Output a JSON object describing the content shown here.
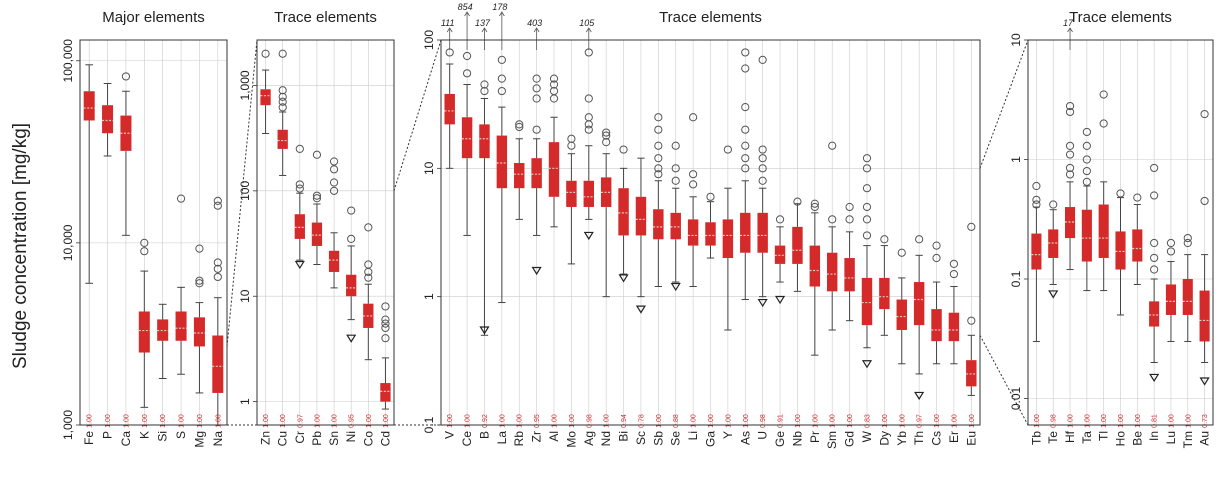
{
  "ylabel": "Sludge concentration [mg/kg]",
  "colors": {
    "box": "#d42a2a",
    "median": "#e6c5c5",
    "whisker": "#444444",
    "outlier": "#555555",
    "grid": "#cccccc",
    "fraction": "#d42a2a"
  },
  "chart_data": [
    {
      "type": "box",
      "title": "Major elements",
      "yscale": "log",
      "ylim": [
        1000,
        130000
      ],
      "yticks": [
        {
          "v": 1000,
          "label": "1,000"
        },
        {
          "v": 10000,
          "label": "10,000"
        },
        {
          "v": 100000,
          "label": "100,000"
        }
      ],
      "elements": [
        {
          "name": "Fe",
          "frac": "1.00",
          "wlo": 6000,
          "q1": 47000,
          "med": 55000,
          "q3": 68000,
          "whi": 95000,
          "out": [],
          "tri": []
        },
        {
          "name": "P",
          "frac": "1.00",
          "wlo": 30000,
          "q1": 40000,
          "med": 47000,
          "q3": 57000,
          "whi": 75000,
          "out": [],
          "tri": []
        },
        {
          "name": "Ca",
          "frac": "1.00",
          "wlo": 11000,
          "q1": 32000,
          "med": 40000,
          "q3": 50000,
          "whi": 68000,
          "out": [
            82000
          ],
          "tri": []
        },
        {
          "name": "K",
          "frac": "1.00",
          "wlo": 1250,
          "q1": 2500,
          "med": 3300,
          "q3": 4200,
          "whi": 7000,
          "out": [
            9000,
            10000
          ],
          "tri": []
        },
        {
          "name": "Si",
          "frac": "1.00",
          "wlo": 1800,
          "q1": 2900,
          "med": 3300,
          "q3": 3800,
          "whi": 4600,
          "out": [],
          "tri": []
        },
        {
          "name": "S",
          "frac": "1.00",
          "wlo": 1900,
          "q1": 2900,
          "med": 3400,
          "q3": 4200,
          "whi": 5700,
          "out": [
            17500
          ],
          "tri": []
        },
        {
          "name": "Mg",
          "frac": "1.00",
          "wlo": 1500,
          "q1": 2700,
          "med": 3200,
          "q3": 3900,
          "whi": 4700,
          "out": [
            6000,
            6200,
            9300
          ],
          "tri": []
        },
        {
          "name": "Na",
          "frac": "1.00",
          "wlo": 1000,
          "q1": 1500,
          "med": 2100,
          "q3": 3100,
          "whi": 5000,
          "out": [
            6500,
            7200,
            7800,
            16000,
            17000
          ],
          "tri": []
        }
      ]
    },
    {
      "type": "box",
      "title": "Trace elements",
      "yscale": "log",
      "ylim": [
        0.6,
        2700
      ],
      "yticks": [
        {
          "v": 1,
          "label": "1"
        },
        {
          "v": 10,
          "label": "10"
        },
        {
          "v": 100,
          "label": "100"
        },
        {
          "v": 1000,
          "label": "1,000"
        }
      ],
      "elements": [
        {
          "name": "Zn",
          "frac": "1.00",
          "wlo": 350,
          "q1": 650,
          "med": 800,
          "q3": 920,
          "whi": 1400,
          "out": [
            2000
          ],
          "tri": []
        },
        {
          "name": "Cu",
          "frac": "1.00",
          "wlo": 140,
          "q1": 250,
          "med": 300,
          "q3": 380,
          "whi": 560,
          "out": [
            620,
            700,
            780,
            900,
            2000
          ],
          "tri": []
        },
        {
          "name": "Cr",
          "frac": "0.97",
          "wlo": 22,
          "q1": 35,
          "med": 45,
          "q3": 60,
          "whi": 95,
          "out": [
            105,
            115,
            250
          ],
          "tri": [
            20
          ]
        },
        {
          "name": "Pb",
          "frac": "1.00",
          "wlo": 20,
          "q1": 30,
          "med": 38,
          "q3": 50,
          "whi": 75,
          "out": [
            85,
            90,
            220
          ],
          "tri": []
        },
        {
          "name": "Sn",
          "frac": "1.00",
          "wlo": 12,
          "q1": 17,
          "med": 22,
          "q3": 27,
          "whi": 40,
          "out": [
            100,
            120,
            160,
            190
          ],
          "tri": []
        },
        {
          "name": "Ni",
          "frac": "0.95",
          "wlo": 6,
          "q1": 10,
          "med": 12,
          "q3": 16,
          "whi": 30,
          "out": [
            35,
            65
          ],
          "tri": [
            4
          ]
        },
        {
          "name": "Co",
          "frac": "1.00",
          "wlo": 2.5,
          "q1": 5,
          "med": 6.5,
          "q3": 8.5,
          "whi": 13,
          "out": [
            15,
            17,
            20,
            45
          ],
          "tri": []
        },
        {
          "name": "Cd",
          "frac": "1.00",
          "wlo": 0.85,
          "q1": 1,
          "med": 1.25,
          "q3": 1.5,
          "whi": 2.6,
          "out": [
            4,
            5,
            5.5,
            6,
            8
          ],
          "tri": []
        }
      ]
    },
    {
      "type": "box",
      "title": "Trace elements",
      "yscale": "log",
      "ylim": [
        0.1,
        100
      ],
      "yticks": [
        {
          "v": 0.1,
          "label": "0.1"
        },
        {
          "v": 1,
          "label": "1"
        },
        {
          "v": 10,
          "label": "10"
        },
        {
          "v": 100,
          "label": "100"
        }
      ],
      "offscale": [
        {
          "element": "V",
          "label": "111"
        },
        {
          "element": "Ce",
          "label": "854"
        },
        {
          "element": "B",
          "label": "137"
        },
        {
          "element": "La",
          "label": "178"
        },
        {
          "element": "Zr",
          "label": "403"
        },
        {
          "element": "Ag",
          "label": "105"
        }
      ],
      "elements": [
        {
          "name": "V",
          "frac": "1.00",
          "wlo": 10,
          "q1": 22,
          "med": 28,
          "q3": 38,
          "whi": 65,
          "out": [
            80
          ],
          "tri": []
        },
        {
          "name": "Ce",
          "frac": "1.00",
          "wlo": 3,
          "q1": 12,
          "med": 17,
          "q3": 25,
          "whi": 45,
          "out": [
            55,
            75
          ],
          "tri": []
        },
        {
          "name": "B",
          "frac": "0.92",
          "wlo": 0.5,
          "q1": 12,
          "med": 17,
          "q3": 22,
          "whi": 35,
          "out": [
            40,
            45
          ],
          "tri": [
            0.55
          ]
        },
        {
          "name": "La",
          "frac": "1.00",
          "wlo": 0.9,
          "q1": 7,
          "med": 11,
          "q3": 18,
          "whi": 30,
          "out": [
            40,
            50,
            70
          ],
          "tri": []
        },
        {
          "name": "Rb",
          "frac": "1.00",
          "wlo": 4,
          "q1": 7,
          "med": 9,
          "q3": 11,
          "whi": 17,
          "out": [
            21,
            22
          ],
          "tri": []
        },
        {
          "name": "Zr",
          "frac": "0.95",
          "wlo": 3,
          "q1": 7,
          "med": 9,
          "q3": 12,
          "whi": 17,
          "out": [
            20,
            35,
            42,
            50
          ],
          "tri": [
            1.6
          ]
        },
        {
          "name": "Al",
          "frac": "1.00",
          "wlo": 3.5,
          "q1": 6,
          "med": 10,
          "q3": 16,
          "whi": 25,
          "out": [
            35,
            40,
            45,
            50
          ],
          "tri": []
        },
        {
          "name": "Mo",
          "frac": "1.00",
          "wlo": 1.8,
          "q1": 5,
          "med": 6.5,
          "q3": 8,
          "whi": 13,
          "out": [
            15,
            17
          ],
          "tri": []
        },
        {
          "name": "Ag",
          "frac": "0.98",
          "wlo": 4,
          "q1": 5,
          "med": 6,
          "q3": 8,
          "whi": 15,
          "out": [
            20,
            22,
            25,
            35,
            80
          ],
          "tri": [
            3
          ]
        },
        {
          "name": "Nd",
          "frac": "1.00",
          "wlo": 1,
          "q1": 5,
          "med": 6.5,
          "q3": 8.5,
          "whi": 13,
          "out": [
            16,
            18,
            19
          ],
          "tri": []
        },
        {
          "name": "Bi",
          "frac": "0.94",
          "wlo": 1.5,
          "q1": 3,
          "med": 4.5,
          "q3": 7,
          "whi": 10,
          "out": [
            14
          ],
          "tri": [
            1.4
          ]
        },
        {
          "name": "Sc",
          "frac": "0.78",
          "wlo": 1,
          "q1": 3,
          "med": 4,
          "q3": 6,
          "whi": 12,
          "out": [],
          "tri": [
            0.8
          ]
        },
        {
          "name": "Sb",
          "frac": "1.00",
          "wlo": 1.2,
          "q1": 2.8,
          "med": 3.5,
          "q3": 4.8,
          "whi": 8,
          "out": [
            9,
            10,
            12,
            15,
            20,
            25
          ],
          "tri": []
        },
        {
          "name": "Se",
          "frac": "0.88",
          "wlo": 1.3,
          "q1": 2.8,
          "med": 3.5,
          "q3": 4.5,
          "whi": 7,
          "out": [
            8,
            10,
            15
          ],
          "tri": [
            1.2
          ]
        },
        {
          "name": "Li",
          "frac": "1.00",
          "wlo": 1.2,
          "q1": 2.5,
          "med": 3,
          "q3": 4,
          "whi": 6,
          "out": [
            7.5,
            9,
            25
          ],
          "tri": []
        },
        {
          "name": "Ga",
          "frac": "1.00",
          "wlo": 2,
          "q1": 2.5,
          "med": 3,
          "q3": 3.8,
          "whi": 5.5,
          "out": [
            6
          ],
          "tri": []
        },
        {
          "name": "Y",
          "frac": "1.00",
          "wlo": 0.55,
          "q1": 2,
          "med": 3,
          "q3": 4,
          "whi": 7,
          "out": [
            14
          ],
          "tri": []
        },
        {
          "name": "As",
          "frac": "1.00",
          "wlo": 0.95,
          "q1": 2.2,
          "med": 3,
          "q3": 4.5,
          "whi": 8,
          "out": [
            10,
            12,
            15,
            20,
            30,
            60,
            80
          ],
          "tri": []
        },
        {
          "name": "U",
          "frac": "0.98",
          "wlo": 1,
          "q1": 2.2,
          "med": 3,
          "q3": 4.5,
          "whi": 7,
          "out": [
            8,
            10,
            12,
            14,
            70
          ],
          "tri": [
            0.9
          ]
        },
        {
          "name": "Ge",
          "frac": "0.91",
          "wlo": 1.3,
          "q1": 1.8,
          "med": 2.1,
          "q3": 2.5,
          "whi": 3.5,
          "out": [
            4
          ],
          "tri": [
            0.95
          ]
        },
        {
          "name": "Nb",
          "frac": "1.00",
          "wlo": 1.1,
          "q1": 1.8,
          "med": 2.3,
          "q3": 3.5,
          "whi": 5.3,
          "out": [
            5.5
          ],
          "tri": []
        },
        {
          "name": "Pr",
          "frac": "1.00",
          "wlo": 0.35,
          "q1": 1.2,
          "med": 1.6,
          "q3": 2.5,
          "whi": 4.5,
          "out": [
            5,
            5.3
          ],
          "tri": []
        },
        {
          "name": "Sm",
          "frac": "1.00",
          "wlo": 0.55,
          "q1": 1.1,
          "med": 1.5,
          "q3": 2.2,
          "whi": 3.5,
          "out": [
            4,
            15
          ],
          "tri": []
        },
        {
          "name": "Gd",
          "frac": "1.00",
          "wlo": 0.65,
          "q1": 1.1,
          "med": 1.4,
          "q3": 2,
          "whi": 3.2,
          "out": [
            4,
            5
          ],
          "tri": []
        },
        {
          "name": "W",
          "frac": "0.83",
          "wlo": 0.4,
          "q1": 0.6,
          "med": 0.9,
          "q3": 1.4,
          "whi": 2.5,
          "out": [
            3,
            4,
            5,
            7,
            10,
            12
          ],
          "tri": [
            0.3
          ]
        },
        {
          "name": "Dy",
          "frac": "1.00",
          "wlo": 0.5,
          "q1": 0.8,
          "med": 1,
          "q3": 1.4,
          "whi": 2.5,
          "out": [
            2.8
          ],
          "tri": []
        },
        {
          "name": "Yb",
          "frac": "1.00",
          "wlo": 0.3,
          "q1": 0.55,
          "med": 0.7,
          "q3": 0.95,
          "whi": 1.4,
          "out": [
            2.2
          ],
          "tri": []
        },
        {
          "name": "Th",
          "frac": "0.97",
          "wlo": 0.25,
          "q1": 0.6,
          "med": 0.95,
          "q3": 1.3,
          "whi": 2.1,
          "out": [
            2.8
          ],
          "tri": [
            0.17
          ]
        },
        {
          "name": "Cs",
          "frac": "1.00",
          "wlo": 0.3,
          "q1": 0.45,
          "med": 0.55,
          "q3": 0.8,
          "whi": 1.3,
          "out": [
            2,
            2.5
          ],
          "tri": []
        },
        {
          "name": "Er",
          "frac": "1.00",
          "wlo": 0.3,
          "q1": 0.45,
          "med": 0.55,
          "q3": 0.75,
          "whi": 1.2,
          "out": [
            1.5,
            1.8
          ],
          "tri": []
        },
        {
          "name": "Eu",
          "frac": "1.00",
          "wlo": 0.17,
          "q1": 0.2,
          "med": 0.25,
          "q3": 0.32,
          "whi": 0.5,
          "out": [
            0.65,
            3.5
          ],
          "tri": []
        }
      ]
    },
    {
      "type": "box",
      "title": "Trace elements",
      "yscale": "log",
      "ylim": [
        0.006,
        10
      ],
      "yticks": [
        {
          "v": 0.01,
          "label": "0.01"
        },
        {
          "v": 0.1,
          "label": "0.1"
        },
        {
          "v": 1,
          "label": "1"
        },
        {
          "v": 10,
          "label": "10"
        }
      ],
      "offscale": [
        {
          "element": "Hf",
          "label": "17"
        }
      ],
      "elements": [
        {
          "name": "Tb",
          "frac": "1.00",
          "wlo": 0.03,
          "q1": 0.12,
          "med": 0.16,
          "q3": 0.24,
          "whi": 0.4,
          "out": [
            0.42,
            0.46,
            0.6
          ],
          "tri": []
        },
        {
          "name": "Te",
          "frac": "0.98",
          "wlo": 0.09,
          "q1": 0.15,
          "med": 0.2,
          "q3": 0.26,
          "whi": 0.38,
          "out": [
            0.42
          ],
          "tri": [
            0.075
          ]
        },
        {
          "name": "Hf",
          "frac": "1.00",
          "wlo": 0.12,
          "q1": 0.22,
          "med": 0.3,
          "q3": 0.4,
          "whi": 0.65,
          "out": [
            0.75,
            0.85,
            1.1,
            1.3,
            2.5,
            2.8
          ],
          "tri": []
        },
        {
          "name": "Ta",
          "frac": "1.00",
          "wlo": 0.08,
          "q1": 0.14,
          "med": 0.22,
          "q3": 0.38,
          "whi": 0.6,
          "out": [
            0.65,
            0.8,
            1,
            1.3,
            1.7
          ],
          "tri": []
        },
        {
          "name": "Tl",
          "frac": "1.00",
          "wlo": 0.08,
          "q1": 0.15,
          "med": 0.22,
          "q3": 0.42,
          "whi": 0.65,
          "out": [
            2,
            3.5
          ],
          "tri": []
        },
        {
          "name": "Ho",
          "frac": "1.00",
          "wlo": 0.05,
          "q1": 0.12,
          "med": 0.17,
          "q3": 0.25,
          "whi": 0.48,
          "out": [
            0.52
          ],
          "tri": []
        },
        {
          "name": "Be",
          "frac": "1.00",
          "wlo": 0.09,
          "q1": 0.14,
          "med": 0.18,
          "q3": 0.26,
          "whi": 0.42,
          "out": [
            0.48
          ],
          "tri": []
        },
        {
          "name": "In",
          "frac": "0.81",
          "wlo": 0.02,
          "q1": 0.04,
          "med": 0.05,
          "q3": 0.065,
          "whi": 0.1,
          "out": [
            0.12,
            0.15,
            0.2,
            0.5,
            0.85
          ],
          "tri": [
            0.015
          ]
        },
        {
          "name": "Lu",
          "frac": "1.00",
          "wlo": 0.03,
          "q1": 0.05,
          "med": 0.065,
          "q3": 0.09,
          "whi": 0.14,
          "out": [
            0.17,
            0.2
          ],
          "tri": []
        },
        {
          "name": "Tm",
          "frac": "1.00",
          "wlo": 0.03,
          "q1": 0.05,
          "med": 0.065,
          "q3": 0.1,
          "whi": 0.16,
          "out": [
            0.2,
            0.22
          ],
          "tri": []
        },
        {
          "name": "Au",
          "frac": "0.73",
          "wlo": 0.02,
          "q1": 0.03,
          "med": 0.045,
          "q3": 0.08,
          "whi": 0.16,
          "out": [
            0.45,
            2.4
          ],
          "tri": [
            0.014
          ]
        }
      ]
    }
  ]
}
